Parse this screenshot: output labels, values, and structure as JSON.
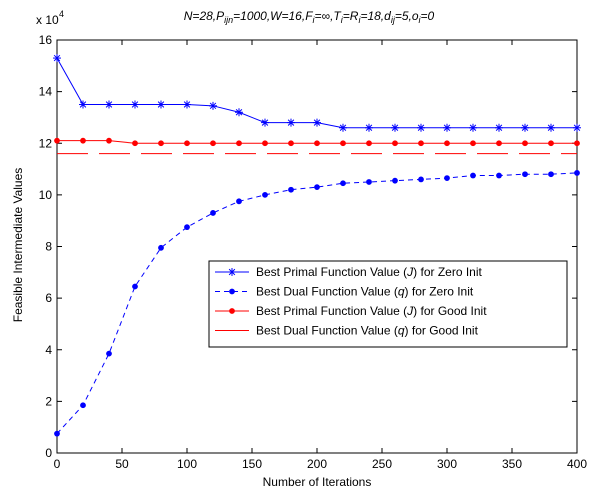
{
  "chart_data": {
    "type": "line",
    "title_parts": [
      {
        "t": "N=28,P",
        "sub": false
      },
      {
        "t": "ijn",
        "sub": true
      },
      {
        "t": "=1000,W=16,F",
        "sub": false
      },
      {
        "t": "i",
        "sub": true
      },
      {
        "t": "=∞,T",
        "sub": false
      },
      {
        "t": "i",
        "sub": true
      },
      {
        "t": "=R",
        "sub": false
      },
      {
        "t": "i",
        "sub": true
      },
      {
        "t": "=18,d",
        "sub": false
      },
      {
        "t": "ij",
        "sub": true
      },
      {
        "t": "=5,o",
        "sub": false
      },
      {
        "t": "i",
        "sub": true
      },
      {
        "t": "=0",
        "sub": false
      }
    ],
    "xlabel": "Number of Iterations",
    "ylabel": "Feasible Intermediate Values",
    "y_multiplier": "x 10",
    "y_multiplier_exp": "4",
    "xlim": [
      0,
      400
    ],
    "ylim": [
      0,
      16
    ],
    "x_ticks": [
      0,
      50,
      100,
      150,
      200,
      250,
      300,
      350,
      400
    ],
    "y_ticks": [
      0,
      2,
      4,
      6,
      8,
      10,
      12,
      14,
      16
    ],
    "x_tick_labels": [
      "0",
      "50",
      "100",
      "150",
      "200",
      "250",
      "300",
      "350",
      "400"
    ],
    "y_tick_labels": [
      "0",
      "2",
      "4",
      "6",
      "8",
      "10",
      "12",
      "14",
      "16"
    ],
    "grid": false,
    "legend_position": "center-right",
    "x": [
      0,
      20,
      40,
      60,
      80,
      100,
      120,
      140,
      160,
      180,
      200,
      220,
      240,
      260,
      280,
      300,
      320,
      340,
      360,
      380,
      400
    ],
    "series": [
      {
        "name_parts": [
          "Best Primal Function Value (",
          "J",
          ") for Zero Init"
        ],
        "color": "#0000ff",
        "style": "solid",
        "marker": "star",
        "values": [
          15.3,
          13.5,
          13.5,
          13.5,
          13.5,
          13.5,
          13.45,
          13.2,
          12.8,
          12.8,
          12.8,
          12.6,
          12.6,
          12.6,
          12.6,
          12.6,
          12.6,
          12.6,
          12.6,
          12.6,
          12.6
        ]
      },
      {
        "name_parts": [
          "Best Dual Function Value (",
          "q",
          ") for Zero Init"
        ],
        "color": "#0000ff",
        "style": "dashed",
        "marker": "dot",
        "values": [
          0.75,
          1.85,
          3.85,
          6.45,
          7.95,
          8.75,
          9.3,
          9.75,
          10.0,
          10.2,
          10.3,
          10.45,
          10.5,
          10.55,
          10.6,
          10.65,
          10.75,
          10.75,
          10.8,
          10.8,
          10.85
        ]
      },
      {
        "name_parts": [
          "Best Primal Function Value (",
          "J",
          ") for Good Init"
        ],
        "color": "#ff0000",
        "style": "solid",
        "marker": "dot",
        "values": [
          12.1,
          12.1,
          12.1,
          12.0,
          12.0,
          12.0,
          12.0,
          12.0,
          12.0,
          12.0,
          12.0,
          12.0,
          12.0,
          12.0,
          12.0,
          12.0,
          12.0,
          12.0,
          12.0,
          12.0,
          12.0
        ]
      },
      {
        "name_parts": [
          "Best Dual Function Value (",
          "q",
          ") for Good Init"
        ],
        "color": "#ff0000",
        "style": "long-dash",
        "marker": "none",
        "values": [
          11.6,
          11.6,
          11.6,
          11.6,
          11.6,
          11.6,
          11.6,
          11.6,
          11.6,
          11.6,
          11.6,
          11.6,
          11.6,
          11.6,
          11.6,
          11.6,
          11.6,
          11.6,
          11.6,
          11.6,
          11.6
        ]
      }
    ]
  }
}
